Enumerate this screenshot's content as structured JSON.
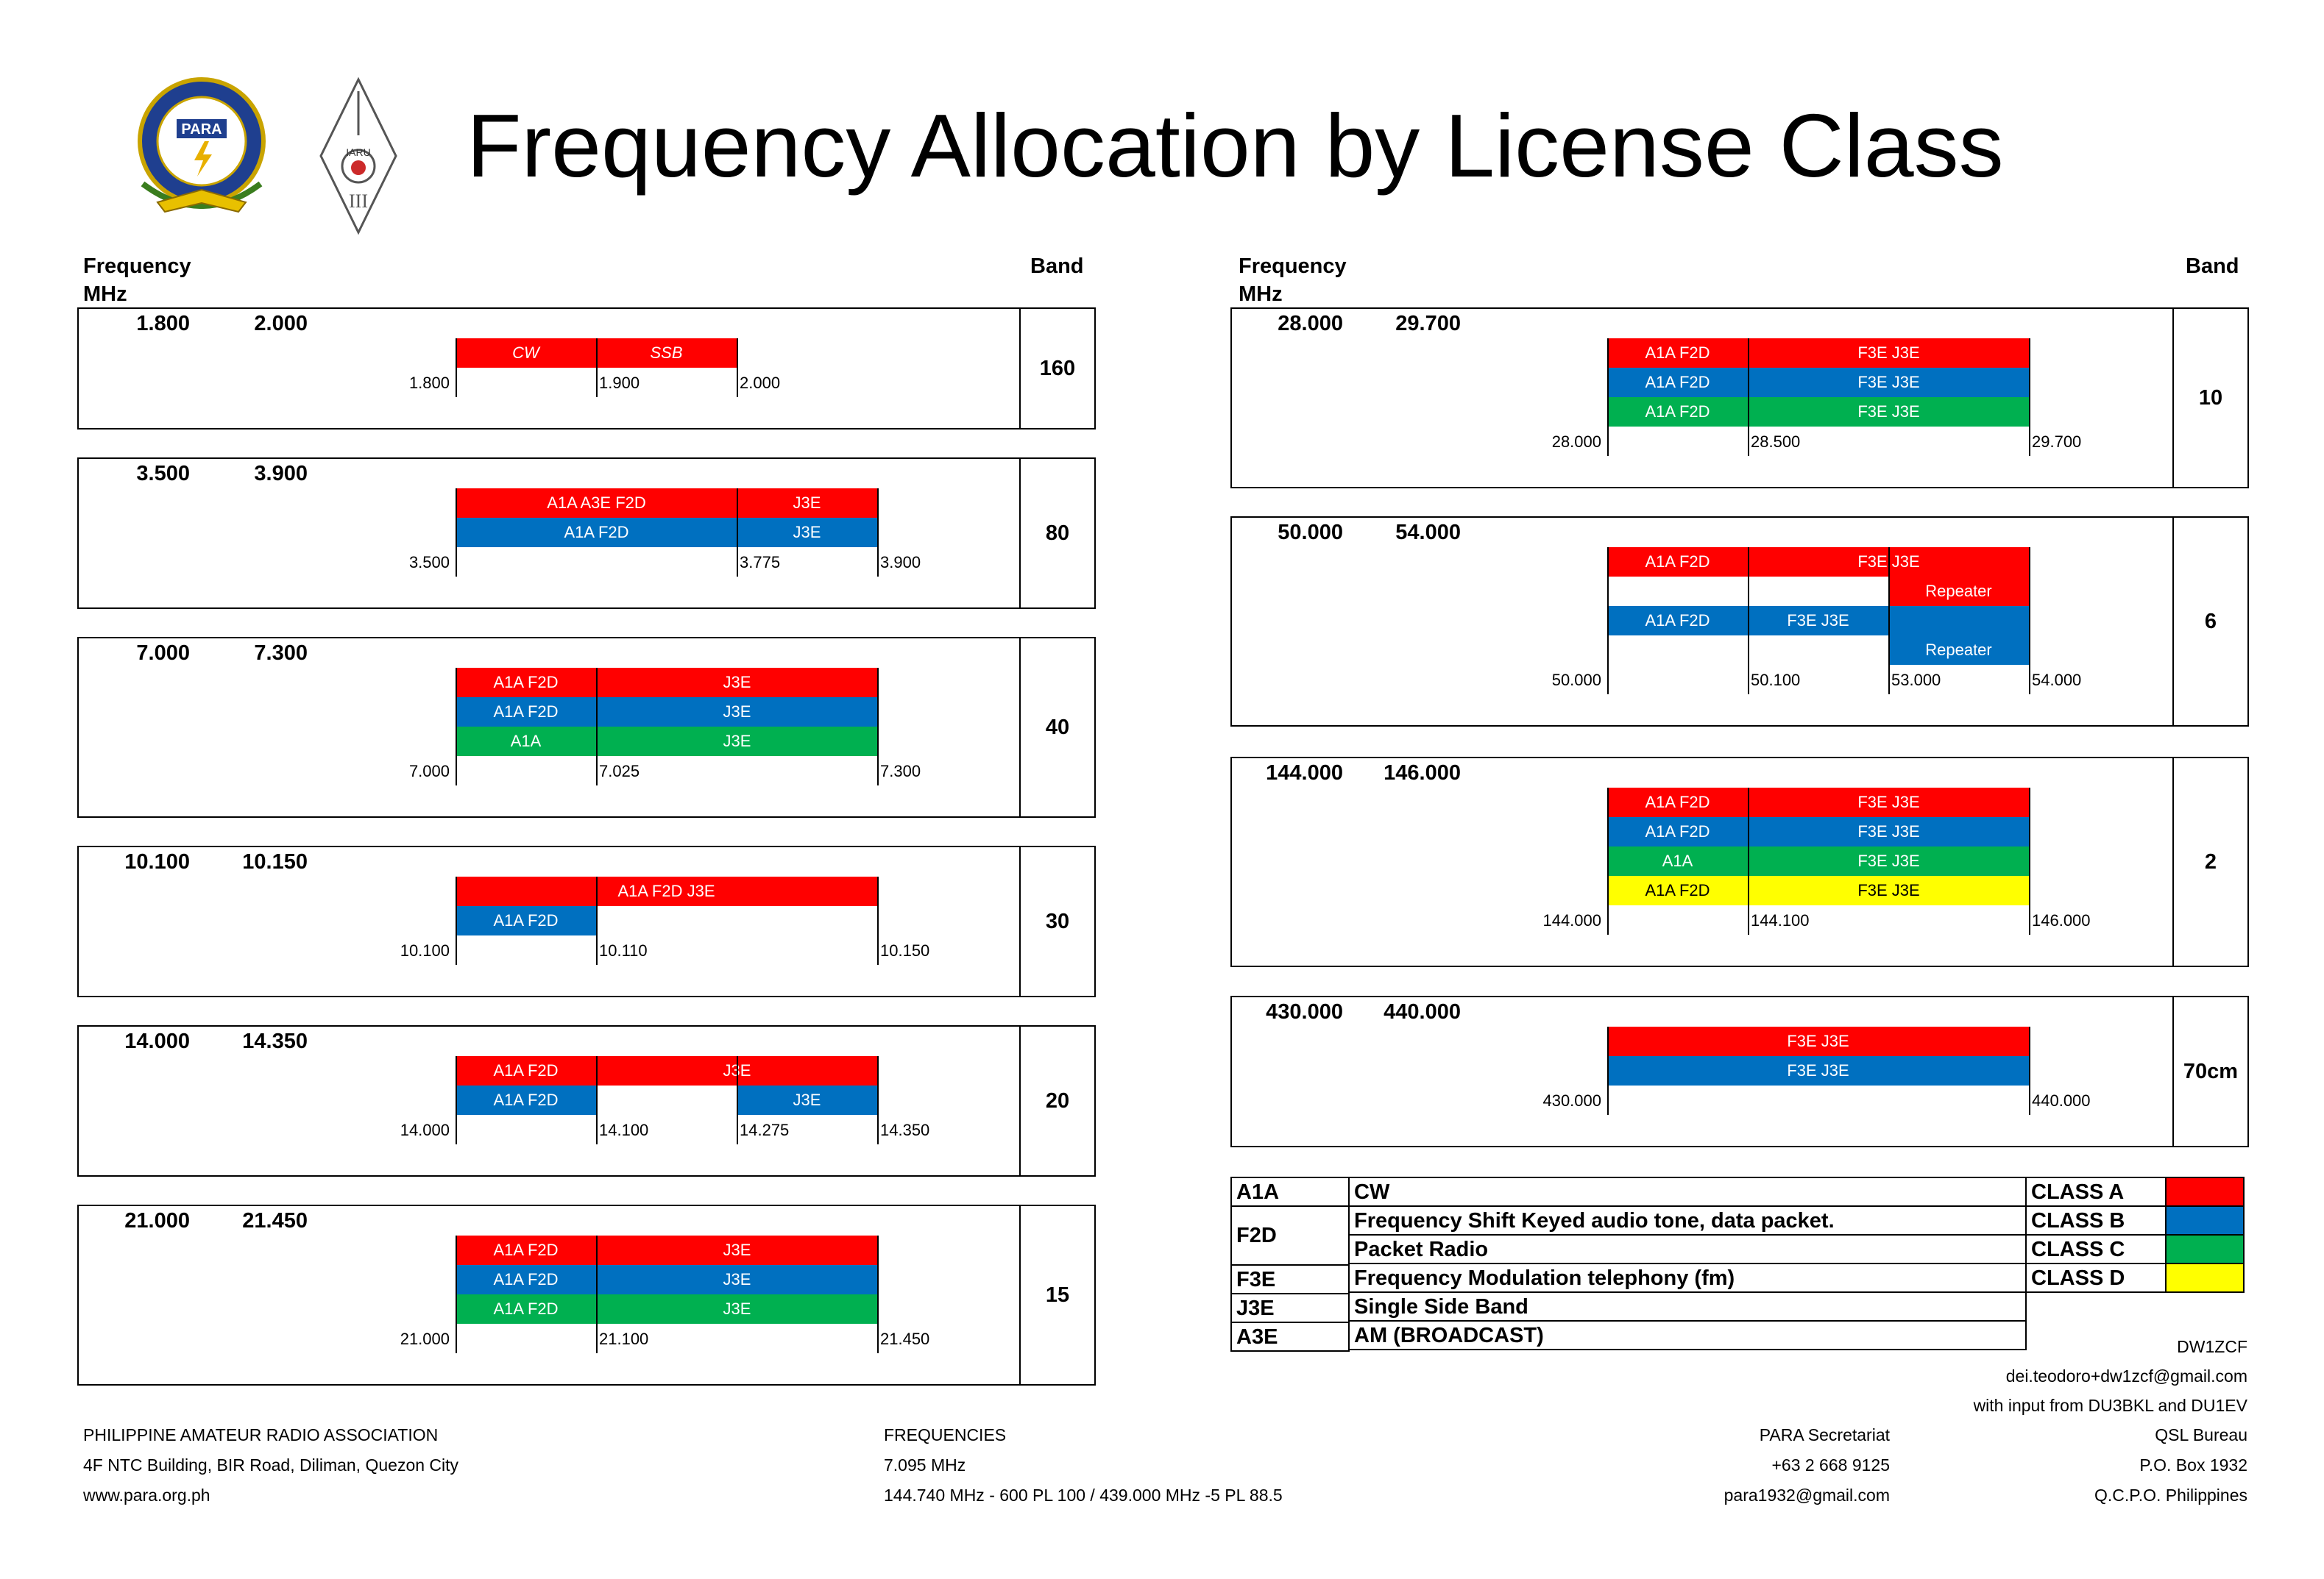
{
  "title": "Frequency Allocation by License Class",
  "logos": {
    "para_text": "PARA",
    "para_ring_text": "PHILIPPINE AMATEUR RADIO ASSOCIATION",
    "para_founded": "FOUNDED 1932",
    "iaru_text": "IARU",
    "iaru_region": "III"
  },
  "headers": {
    "frequency": "Frequency",
    "mhz": "MHz",
    "band": "Band"
  },
  "colors": {
    "class_a": "#ff0000",
    "class_b": "#0070c0",
    "class_c": "#00b050",
    "class_d": "#ffff00"
  },
  "bands": [
    {
      "band": "160",
      "start": "1.800",
      "end": "2.000",
      "rows": [
        [
          {
            "text": "CW",
            "color": "class_a",
            "from": 0,
            "to": 1,
            "italic": true
          },
          {
            "text": "SSB",
            "color": "class_a",
            "from": 1,
            "to": 2,
            "italic": true
          }
        ]
      ],
      "ticks": [
        "1.800",
        "1.900",
        "2.000"
      ]
    },
    {
      "band": "80",
      "start": "3.500",
      "end": "3.900",
      "rows": [
        [
          {
            "text": "A1A    A3E    F2D",
            "color": "class_a",
            "from": 0,
            "to": 2
          },
          {
            "text": "J3E",
            "color": "class_a",
            "from": 2,
            "to": 3
          }
        ],
        [
          {
            "text": "A1A      F2D",
            "color": "class_b",
            "from": 0,
            "to": 2
          },
          {
            "text": "J3E",
            "color": "class_b",
            "from": 2,
            "to": 3
          }
        ]
      ],
      "ticks": [
        "3.500",
        "",
        "3.775",
        "3.900"
      ]
    },
    {
      "band": "40",
      "start": "7.000",
      "end": "7.300",
      "rows": [
        [
          {
            "text": "A1A   F2D",
            "color": "class_a",
            "from": 0,
            "to": 1
          },
          {
            "text": "J3E",
            "color": "class_a",
            "from": 1,
            "to": 3
          }
        ],
        [
          {
            "text": "A1A   F2D",
            "color": "class_b",
            "from": 0,
            "to": 1
          },
          {
            "text": "J3E",
            "color": "class_b",
            "from": 1,
            "to": 3
          }
        ],
        [
          {
            "text": "A1A",
            "color": "class_c",
            "from": 0,
            "to": 1
          },
          {
            "text": "J3E",
            "color": "class_c",
            "from": 1,
            "to": 3
          }
        ]
      ],
      "ticks": [
        "7.000",
        "7.025",
        "",
        "7.300"
      ]
    },
    {
      "band": "30",
      "start": "10.100",
      "end": "10.150",
      "rows": [
        [
          {
            "text": "A1A       F2D     J3E",
            "color": "class_a",
            "from": 0,
            "to": 3
          }
        ],
        [
          {
            "text": "A1A   F2D",
            "color": "class_b",
            "from": 0,
            "to": 1
          }
        ]
      ],
      "ticks": [
        "10.100",
        "10.110",
        "",
        "10.150"
      ]
    },
    {
      "band": "20",
      "start": "14.000",
      "end": "14.350",
      "rows": [
        [
          {
            "text": "A1A   F2D",
            "color": "class_a",
            "from": 0,
            "to": 1
          },
          {
            "text": "J3E",
            "color": "class_a",
            "from": 1,
            "to": 3
          }
        ],
        [
          {
            "text": "A1A   F2D",
            "color": "class_b",
            "from": 0,
            "to": 1
          },
          {
            "text": "J3E",
            "color": "class_b",
            "from": 2,
            "to": 3
          }
        ]
      ],
      "ticks": [
        "14.000",
        "14.100",
        "14.275",
        "14.350"
      ]
    },
    {
      "band": "15",
      "start": "21.000",
      "end": "21.450",
      "rows": [
        [
          {
            "text": "A1A   F2D",
            "color": "class_a",
            "from": 0,
            "to": 1
          },
          {
            "text": "J3E",
            "color": "class_a",
            "from": 1,
            "to": 3
          }
        ],
        [
          {
            "text": "A1A   F2D",
            "color": "class_b",
            "from": 0,
            "to": 1
          },
          {
            "text": "J3E",
            "color": "class_b",
            "from": 1,
            "to": 3
          }
        ],
        [
          {
            "text": "A1A   F2D",
            "color": "class_c",
            "from": 0,
            "to": 1
          },
          {
            "text": "J3E",
            "color": "class_c",
            "from": 1,
            "to": 3
          }
        ]
      ],
      "ticks": [
        "21.000",
        "21.100",
        "",
        "21.450"
      ]
    },
    {
      "band": "10",
      "start": "28.000",
      "end": "29.700",
      "rows": [
        [
          {
            "text": "A1A   F2D",
            "color": "class_a",
            "from": 0,
            "to": 1
          },
          {
            "text": "F3E    J3E",
            "color": "class_a",
            "from": 1,
            "to": 3
          }
        ],
        [
          {
            "text": "A1A   F2D",
            "color": "class_b",
            "from": 0,
            "to": 1
          },
          {
            "text": "F3E    J3E",
            "color": "class_b",
            "from": 1,
            "to": 3
          }
        ],
        [
          {
            "text": "A1A   F2D",
            "color": "class_c",
            "from": 0,
            "to": 1
          },
          {
            "text": "F3E    J3E",
            "color": "class_c",
            "from": 1,
            "to": 3
          }
        ]
      ],
      "ticks": [
        "28.000",
        "28.500",
        "",
        "29.700"
      ]
    },
    {
      "band": "6",
      "start": "50.000",
      "end": "54.000",
      "rows": [
        [
          {
            "text": "A1A   F2D",
            "color": "class_a",
            "from": 0,
            "to": 1
          },
          {
            "text": "F3E    J3E",
            "color": "class_a",
            "from": 1,
            "to": 3
          }
        ],
        [
          {
            "text": "Repeater",
            "color": "class_a",
            "from": 2,
            "to": 3
          }
        ],
        [
          {
            "text": "A1A   F2D",
            "color": "class_b",
            "from": 0,
            "to": 1
          },
          {
            "text": "F3E    J3E",
            "color": "class_b",
            "from": 1,
            "to": 2
          },
          {
            "text": "",
            "color": "class_b",
            "from": 2,
            "to": 3
          }
        ],
        [
          {
            "text": "Repeater",
            "color": "class_b",
            "from": 2,
            "to": 3
          }
        ]
      ],
      "ticks": [
        "50.000",
        "50.100",
        "53.000",
        "54.000"
      ]
    },
    {
      "band": "2",
      "start": "144.000",
      "end": "146.000",
      "rows": [
        [
          {
            "text": "A1A   F2D",
            "color": "class_a",
            "from": 0,
            "to": 1
          },
          {
            "text": "F3E    J3E",
            "color": "class_a",
            "from": 1,
            "to": 3
          }
        ],
        [
          {
            "text": "A1A   F2D",
            "color": "class_b",
            "from": 0,
            "to": 1
          },
          {
            "text": "F3E    J3E",
            "color": "class_b",
            "from": 1,
            "to": 3
          }
        ],
        [
          {
            "text": "A1A",
            "color": "class_c",
            "from": 0,
            "to": 1
          },
          {
            "text": "F3E    J3E",
            "color": "class_c",
            "from": 1,
            "to": 3
          }
        ],
        [
          {
            "text": "A1A   F2D",
            "color": "class_d",
            "from": 0,
            "to": 1
          },
          {
            "text": "F3E    J3E",
            "color": "class_d",
            "from": 1,
            "to": 3
          }
        ]
      ],
      "ticks": [
        "144.000",
        "144.100",
        "",
        "146.000"
      ]
    },
    {
      "band": "70cm",
      "start": "430.000",
      "end": "440.000",
      "rows": [
        [
          {
            "text": "F3E    J3E",
            "color": "class_a",
            "from": 0,
            "to": 3
          }
        ],
        [
          {
            "text": "F3E    J3E",
            "color": "class_b",
            "from": 0,
            "to": 3
          }
        ]
      ],
      "ticks": [
        "430.000",
        "",
        "",
        "440.000"
      ]
    }
  ],
  "legend": {
    "modes": [
      {
        "code": "A1A",
        "desc": "CW"
      },
      {
        "code": "F2D",
        "desc": "Frequency Shift Keyed audio tone, data packet."
      },
      {
        "code": "",
        "desc": "Packet Radio"
      },
      {
        "code": "F3E",
        "desc": "Frequency Modulation telephony (fm)"
      },
      {
        "code": "J3E",
        "desc": "Single Side Band"
      },
      {
        "code": "A3E",
        "desc": "AM (BROADCAST)"
      }
    ],
    "classes": [
      {
        "name": "CLASS A",
        "color": "class_a"
      },
      {
        "name": "CLASS B",
        "color": "class_b"
      },
      {
        "name": "CLASS C",
        "color": "class_c"
      },
      {
        "name": "CLASS D",
        "color": "class_d"
      }
    ]
  },
  "credits": {
    "callsign": "DW1ZCF",
    "email": "dei.teodoro+dw1zcf@gmail.com",
    "input": "with input from DU3BKL and DU1EV"
  },
  "footer": {
    "org": [
      "PHILIPPINE AMATEUR RADIO ASSOCIATION",
      "4F NTC Building, BIR Road, Diliman, Quezon City",
      "www.para.org.ph"
    ],
    "frequencies": [
      "FREQUENCIES",
      "7.095 MHz",
      "144.740 MHz - 600 PL 100 / 439.000 MHz -5 PL 88.5"
    ],
    "secretariat": [
      "PARA Secretariat",
      "+63 2 668 9125",
      "para1932@gmail.com"
    ],
    "qsl": [
      "QSL Bureau",
      "P.O. Box 1932",
      "Q.C.P.O. Philippines"
    ]
  }
}
